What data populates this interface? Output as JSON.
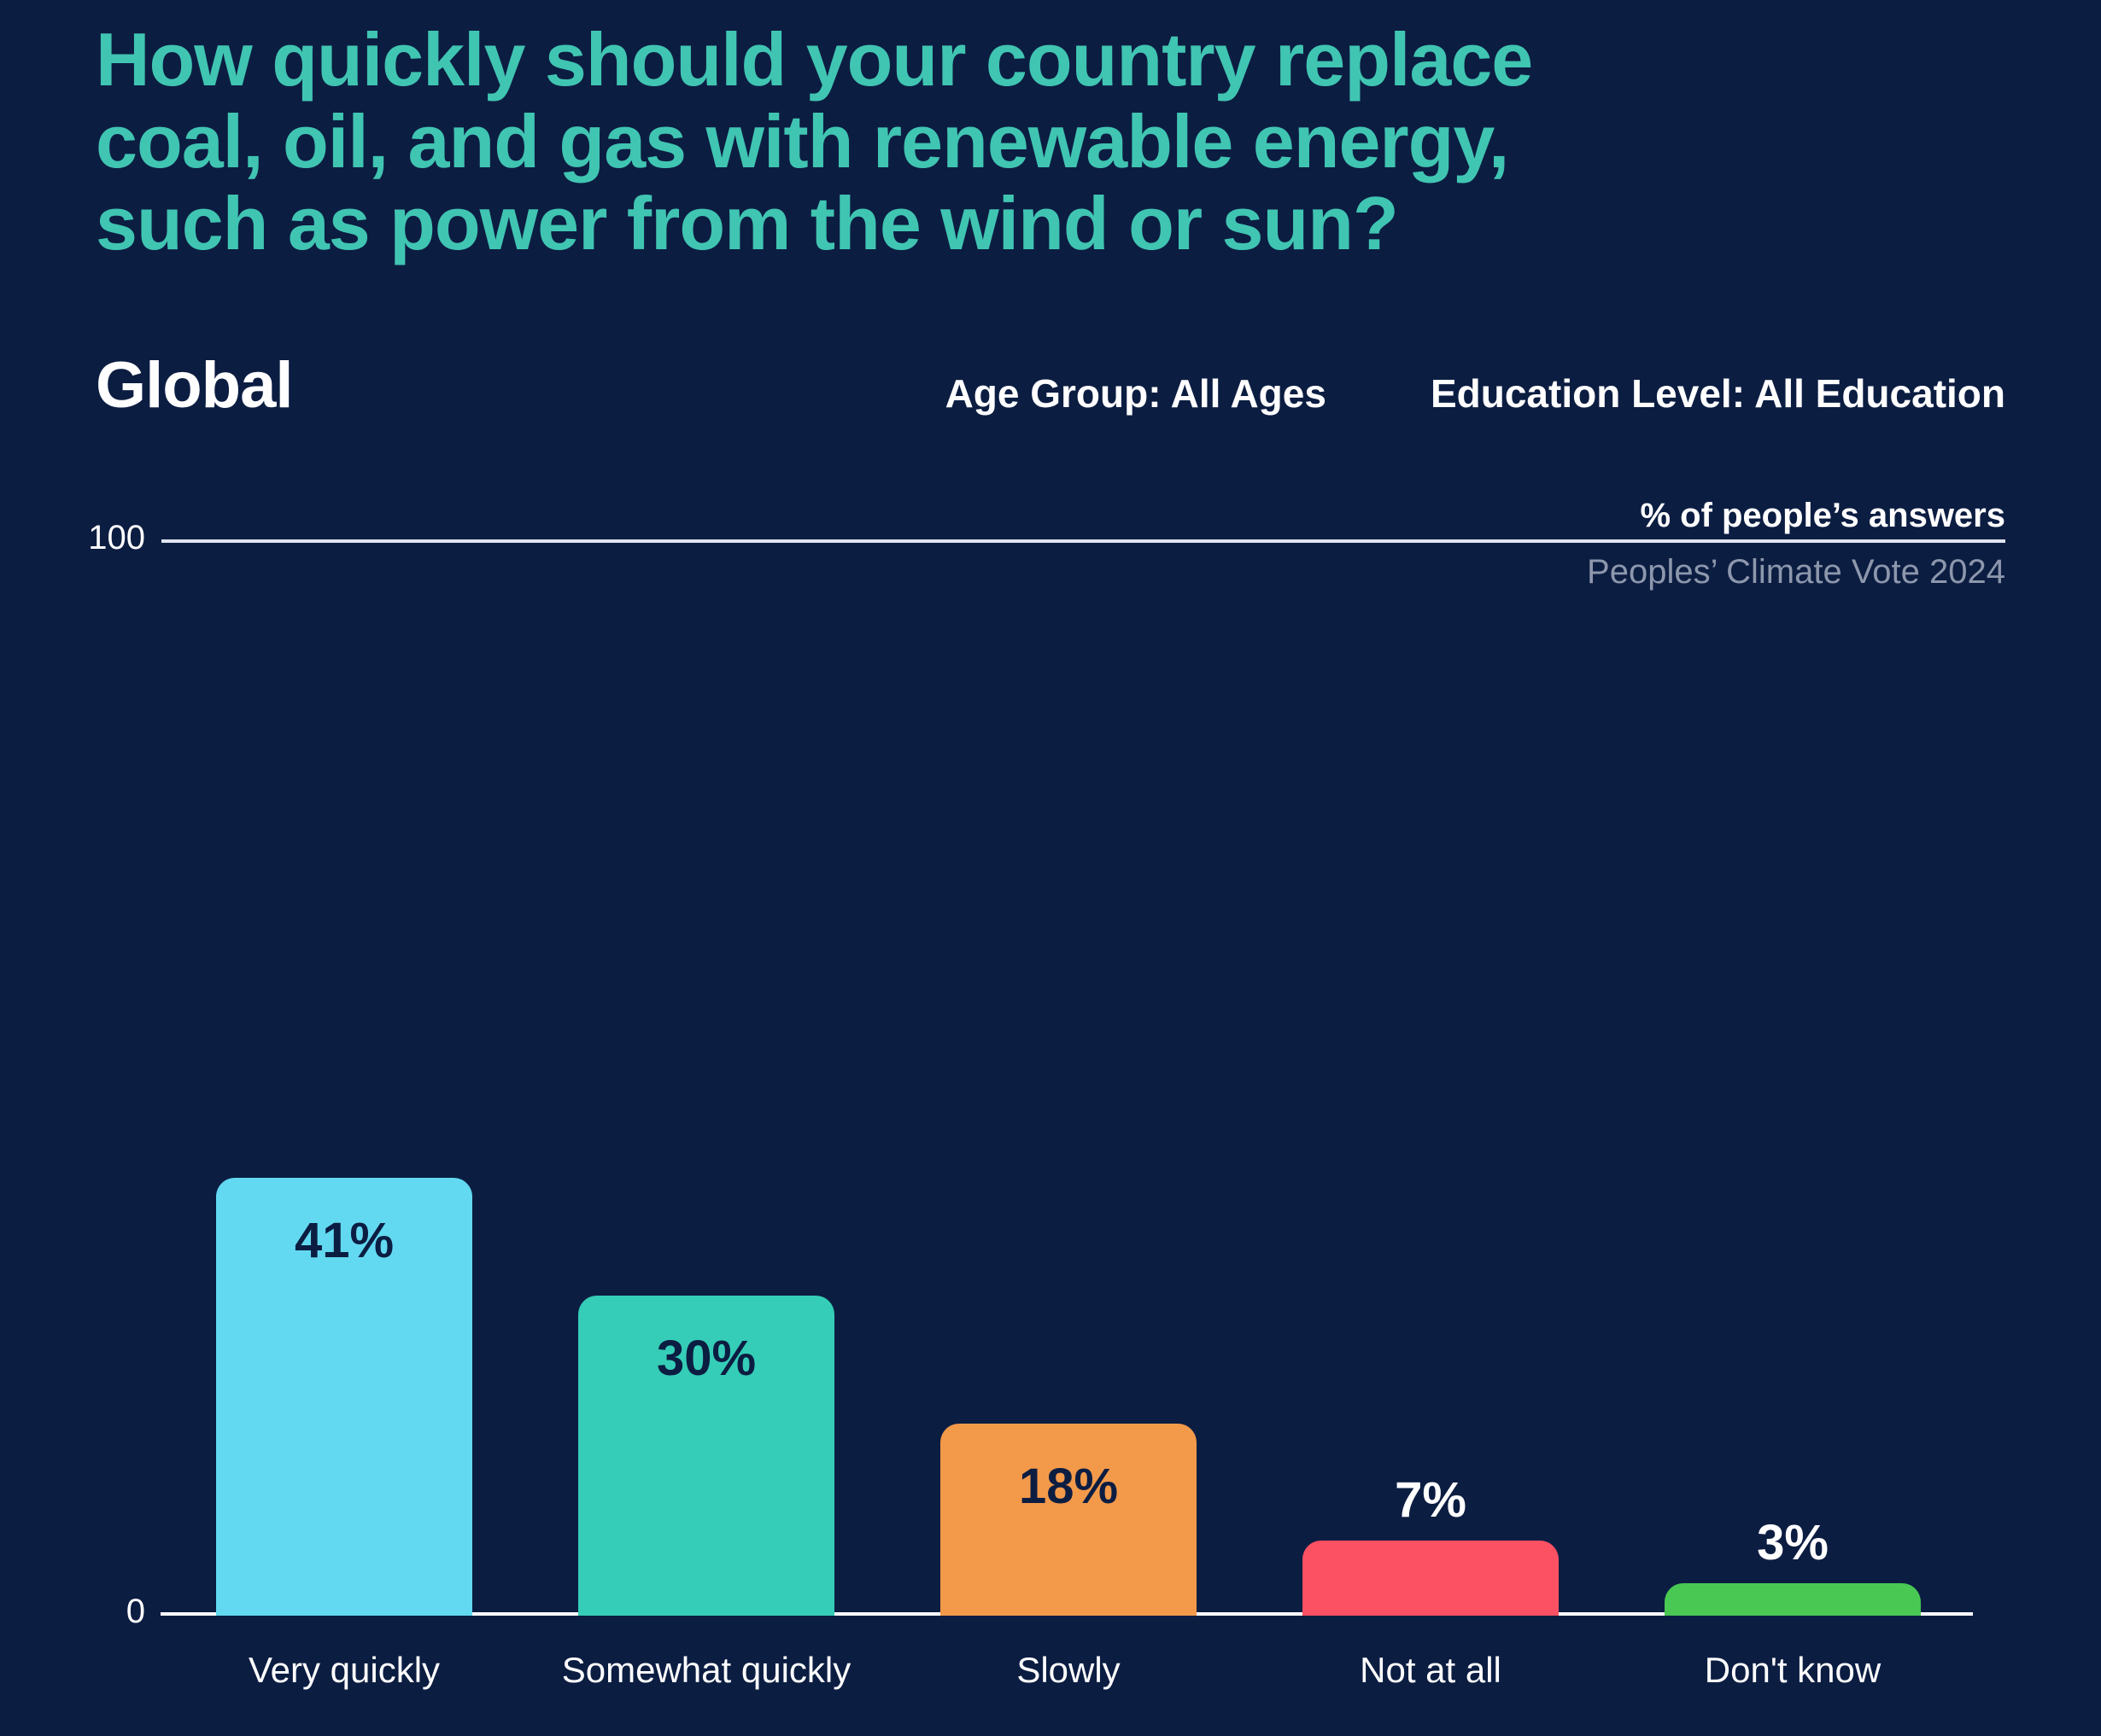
{
  "title": "How quickly should your country replace coal, oil, and gas with renewable energy, such as power from the wind or sun?",
  "region_label": "Global",
  "filters": {
    "age_group": "Age Group: All Ages",
    "education": "Education Level: All Education"
  },
  "axis_unit_label": "% of people’s answers",
  "source_label": "Peoples’ Climate Vote 2024",
  "colors": {
    "background": "#0C1D42",
    "title_accent": "#40C5B2",
    "gridline": "#DFE5EE",
    "baseline": "#FFFFFF",
    "source_text": "#8D97AC",
    "bar_label_inside": "#0C1D42",
    "bar_label_outside": "#FFFFFF"
  },
  "chart_data": {
    "type": "bar",
    "title": "How quickly should your country replace coal, oil, and gas with renewable energy, such as power from the wind or sun?",
    "categories": [
      "Very quickly",
      "Somewhat quickly",
      "Slowly",
      "Not at all",
      "Don't know"
    ],
    "values": [
      41,
      30,
      18,
      7,
      3
    ],
    "value_labels": [
      "41%",
      "30%",
      "18%",
      "7%",
      "3%"
    ],
    "bar_colors": [
      "#62D9F0",
      "#35CDB7",
      "#F2994A",
      "#FC5063",
      "#49C853"
    ],
    "xlabel": "",
    "ylabel": "% of people’s answers",
    "ylim": [
      0,
      100
    ],
    "y_tick_labels": [
      "0",
      "100"
    ],
    "grid": "top-rule-only",
    "legend": false
  }
}
